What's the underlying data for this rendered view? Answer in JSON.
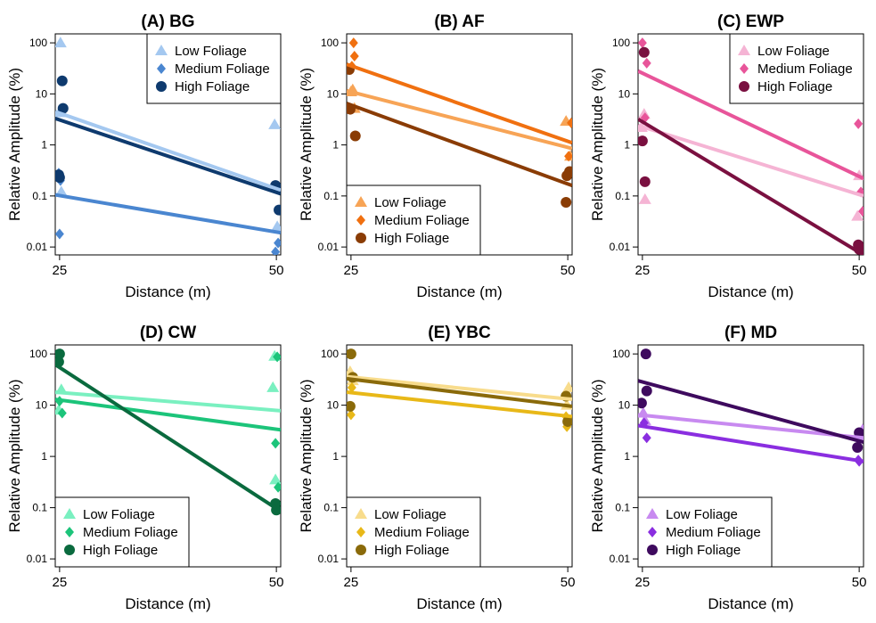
{
  "chart_data": [
    {
      "type": "scatter",
      "title": "(A) BG",
      "xlabel": "Distance (m)",
      "ylabel": "Relative Amplitude (%)",
      "x_ticks": [
        "25",
        "50"
      ],
      "y_ticks": [
        "0.01",
        "0.1",
        "1",
        "10",
        "100"
      ],
      "y_scale": "log",
      "ylim": [
        0.007,
        150
      ],
      "xlim": [
        24.5,
        50.5
      ],
      "legend_position": "top-right",
      "series": [
        {
          "name": "Low Foliage",
          "color": "#a4c8f0",
          "marker": "triangle",
          "points": [
            [
              25.1,
              100
            ],
            [
              25.0,
              4.3
            ],
            [
              25.2,
              0.12
            ],
            [
              49.8,
              2.5
            ],
            [
              50.1,
              0.025
            ]
          ],
          "fit": [
            [
              24.5,
              4.5
            ],
            [
              50.5,
              0.13
            ]
          ]
        },
        {
          "name": "Medium Foliage",
          "color": "#4a86d0",
          "marker": "diamond",
          "points": [
            [
              24.9,
              0.28
            ],
            [
              25.1,
              0.2
            ],
            [
              25.0,
              0.018
            ],
            [
              50.2,
              0.012
            ],
            [
              49.9,
              0.008
            ]
          ],
          "fit": [
            [
              24.5,
              0.105
            ],
            [
              50.5,
              0.019
            ]
          ]
        },
        {
          "name": "High Foliage",
          "color": "#0e3a6e",
          "marker": "circle",
          "points": [
            [
              25.3,
              18
            ],
            [
              25.4,
              5.2
            ],
            [
              24.9,
              0.26
            ],
            [
              25.0,
              0.23
            ],
            [
              49.9,
              0.16
            ],
            [
              50.2,
              0.14
            ],
            [
              50.3,
              0.053
            ]
          ],
          "fit": [
            [
              24.5,
              3.3
            ],
            [
              50.5,
              0.11
            ]
          ]
        }
      ]
    },
    {
      "type": "scatter",
      "title": "(B) AF",
      "xlabel": "Distance (m)",
      "ylabel": "Relative Amplitude (%)",
      "x_ticks": [
        "25",
        "50"
      ],
      "y_ticks": [
        "0.01",
        "0.1",
        "1",
        "10",
        "100"
      ],
      "y_scale": "log",
      "ylim": [
        0.007,
        150
      ],
      "xlim": [
        24.5,
        50.5
      ],
      "legend_position": "bottom-left",
      "series": [
        {
          "name": "Low Foliage",
          "color": "#f7a456",
          "marker": "triangle",
          "points": [
            [
              25.2,
              12
            ],
            [
              25.0,
              11
            ],
            [
              25.4,
              5.2
            ],
            [
              49.8,
              2.9
            ],
            [
              50.3,
              0.6
            ]
          ],
          "fit": [
            [
              24.5,
              11.5
            ],
            [
              50.5,
              0.85
            ]
          ]
        },
        {
          "name": "Medium Foliage",
          "color": "#f07010",
          "marker": "diamond",
          "points": [
            [
              25.3,
              100
            ],
            [
              25.4,
              55
            ],
            [
              25.1,
              35
            ],
            [
              50.4,
              2.7
            ],
            [
              50.1,
              0.6
            ]
          ],
          "fit": [
            [
              24.5,
              38
            ],
            [
              50.5,
              1.1
            ]
          ]
        },
        {
          "name": "High Foliage",
          "color": "#8a3c05",
          "marker": "circle",
          "points": [
            [
              24.8,
              30
            ],
            [
              24.9,
              5
            ],
            [
              25.5,
              1.5
            ],
            [
              50.2,
              0.3
            ],
            [
              49.9,
              0.25
            ],
            [
              49.8,
              0.075
            ]
          ],
          "fit": [
            [
              24.5,
              6.5
            ],
            [
              50.5,
              0.16
            ]
          ]
        }
      ]
    },
    {
      "type": "scatter",
      "title": "(C) EWP",
      "xlabel": "Distance (m)",
      "ylabel": "Relative Amplitude (%)",
      "x_ticks": [
        "25",
        "50"
      ],
      "y_ticks": [
        "0.01",
        "0.1",
        "1",
        "10",
        "100"
      ],
      "y_scale": "log",
      "ylim": [
        0.007,
        150
      ],
      "xlim": [
        24.5,
        50.5
      ],
      "legend_position": "top-right",
      "series": [
        {
          "name": "Low Foliage",
          "color": "#f5b4d4",
          "marker": "triangle",
          "points": [
            [
              25.2,
              4
            ],
            [
              24.9,
              2.2
            ],
            [
              25.3,
              0.085
            ],
            [
              50.0,
              0.25
            ],
            [
              49.8,
              0.04
            ]
          ],
          "fit": [
            [
              24.5,
              2.4
            ],
            [
              50.5,
              0.1
            ]
          ]
        },
        {
          "name": "Medium Foliage",
          "color": "#e8559a",
          "marker": "diamond",
          "points": [
            [
              25.0,
              100
            ],
            [
              25.5,
              40
            ],
            [
              25.3,
              3.4
            ],
            [
              49.9,
              2.6
            ],
            [
              50.2,
              0.12
            ],
            [
              50.4,
              0.05
            ]
          ],
          "fit": [
            [
              24.5,
              28
            ],
            [
              50.5,
              0.22
            ]
          ]
        },
        {
          "name": "High Foliage",
          "color": "#7a1040",
          "marker": "circle",
          "points": [
            [
              25.2,
              65
            ],
            [
              25.0,
              1.2
            ],
            [
              25.3,
              0.19
            ],
            [
              49.9,
              0.011
            ],
            [
              50.0,
              0.009
            ]
          ],
          "fit": [
            [
              24.5,
              3.2
            ],
            [
              50.5,
              0.007
            ]
          ]
        }
      ]
    },
    {
      "type": "scatter",
      "title": "(D) CW",
      "xlabel": "Distance (m)",
      "ylabel": "Relative Amplitude (%)",
      "x_ticks": [
        "25",
        "50"
      ],
      "y_ticks": [
        "0.01",
        "0.1",
        "1",
        "10",
        "100"
      ],
      "y_scale": "log",
      "ylim": [
        0.007,
        150
      ],
      "xlim": [
        24.5,
        50.5
      ],
      "legend_position": "bottom-left",
      "series": [
        {
          "name": "Low Foliage",
          "color": "#7af0c0",
          "marker": "triangle",
          "points": [
            [
              25.2,
              20
            ],
            [
              24.9,
              8
            ],
            [
              49.8,
              90
            ],
            [
              49.6,
              22
            ],
            [
              49.9,
              0.35
            ]
          ],
          "fit": [
            [
              24.5,
              18
            ],
            [
              50.5,
              7.8
            ]
          ]
        },
        {
          "name": "Medium Foliage",
          "color": "#1cc47a",
          "marker": "diamond",
          "points": [
            [
              25.0,
              12
            ],
            [
              25.3,
              7
            ],
            [
              50.1,
              88
            ],
            [
              49.9,
              1.8
            ],
            [
              50.2,
              0.25
            ]
          ],
          "fit": [
            [
              24.5,
              13
            ],
            [
              50.5,
              3.3
            ]
          ]
        },
        {
          "name": "High Foliage",
          "color": "#0a6a3e",
          "marker": "circle",
          "points": [
            [
              25.0,
              100
            ],
            [
              24.9,
              70
            ],
            [
              49.9,
              0.12
            ],
            [
              50.0,
              0.09
            ]
          ],
          "fit": [
            [
              24.5,
              62
            ],
            [
              50.5,
              0.085
            ]
          ]
        }
      ]
    },
    {
      "type": "scatter",
      "title": "(E) YBC",
      "xlabel": "Distance (m)",
      "ylabel": "Relative Amplitude (%)",
      "x_ticks": [
        "25",
        "50"
      ],
      "y_ticks": [
        "0.01",
        "0.1",
        "1",
        "10",
        "100"
      ],
      "y_scale": "log",
      "ylim": [
        0.007,
        150
      ],
      "xlim": [
        24.5,
        50.5
      ],
      "legend_position": "bottom-left",
      "series": [
        {
          "name": "Low Foliage",
          "color": "#f8dc8c",
          "marker": "triangle",
          "points": [
            [
              24.9,
              45
            ],
            [
              25.2,
              30
            ],
            [
              50.1,
              22
            ],
            [
              49.9,
              10
            ]
          ],
          "fit": [
            [
              24.5,
              36
            ],
            [
              50.5,
              13
            ]
          ]
        },
        {
          "name": "Medium Foliage",
          "color": "#e8b818",
          "marker": "diamond",
          "points": [
            [
              25.1,
              22
            ],
            [
              25.0,
              6.5
            ],
            [
              49.8,
              6
            ],
            [
              49.9,
              3.8
            ]
          ],
          "fit": [
            [
              24.5,
              18
            ],
            [
              50.5,
              6
            ]
          ]
        },
        {
          "name": "High Foliage",
          "color": "#8a6a0a",
          "marker": "circle",
          "points": [
            [
              25.0,
              100
            ],
            [
              25.2,
              35
            ],
            [
              24.9,
              9.5
            ],
            [
              49.8,
              15
            ],
            [
              50.0,
              4.8
            ]
          ],
          "fit": [
            [
              24.5,
              33
            ],
            [
              50.5,
              9.5
            ]
          ]
        }
      ]
    },
    {
      "type": "scatter",
      "title": "(F) MD",
      "xlabel": "Distance (m)",
      "ylabel": "Relative Amplitude (%)",
      "x_ticks": [
        "25",
        "50"
      ],
      "y_ticks": [
        "0.01",
        "0.1",
        "1",
        "10",
        "100"
      ],
      "y_scale": "log",
      "ylim": [
        0.007,
        150
      ],
      "xlim": [
        24.5,
        50.5
      ],
      "legend_position": "bottom-left",
      "series": [
        {
          "name": "Low Foliage",
          "color": "#c88af0",
          "marker": "triangle",
          "points": [
            [
              25.1,
              7
            ],
            [
              25.3,
              5
            ],
            [
              50.4,
              3.3
            ],
            [
              50.1,
              2.4
            ]
          ],
          "fit": [
            [
              24.5,
              6.5
            ],
            [
              50.5,
              2.3
            ]
          ]
        },
        {
          "name": "Medium Foliage",
          "color": "#8a2ee0",
          "marker": "diamond",
          "points": [
            [
              25.2,
              4.5
            ],
            [
              25.5,
              2.3
            ],
            [
              50.0,
              0.8
            ],
            [
              49.9,
              0.85
            ]
          ],
          "fit": [
            [
              24.5,
              4
            ],
            [
              50.5,
              0.8
            ]
          ]
        },
        {
          "name": "High Foliage",
          "color": "#3e0a5e",
          "marker": "circle",
          "points": [
            [
              25.4,
              100
            ],
            [
              25.5,
              19
            ],
            [
              24.9,
              11
            ],
            [
              50.0,
              2.9
            ],
            [
              49.8,
              1.5
            ]
          ],
          "fit": [
            [
              24.5,
              30
            ],
            [
              50.5,
              1.9
            ]
          ]
        }
      ]
    }
  ]
}
